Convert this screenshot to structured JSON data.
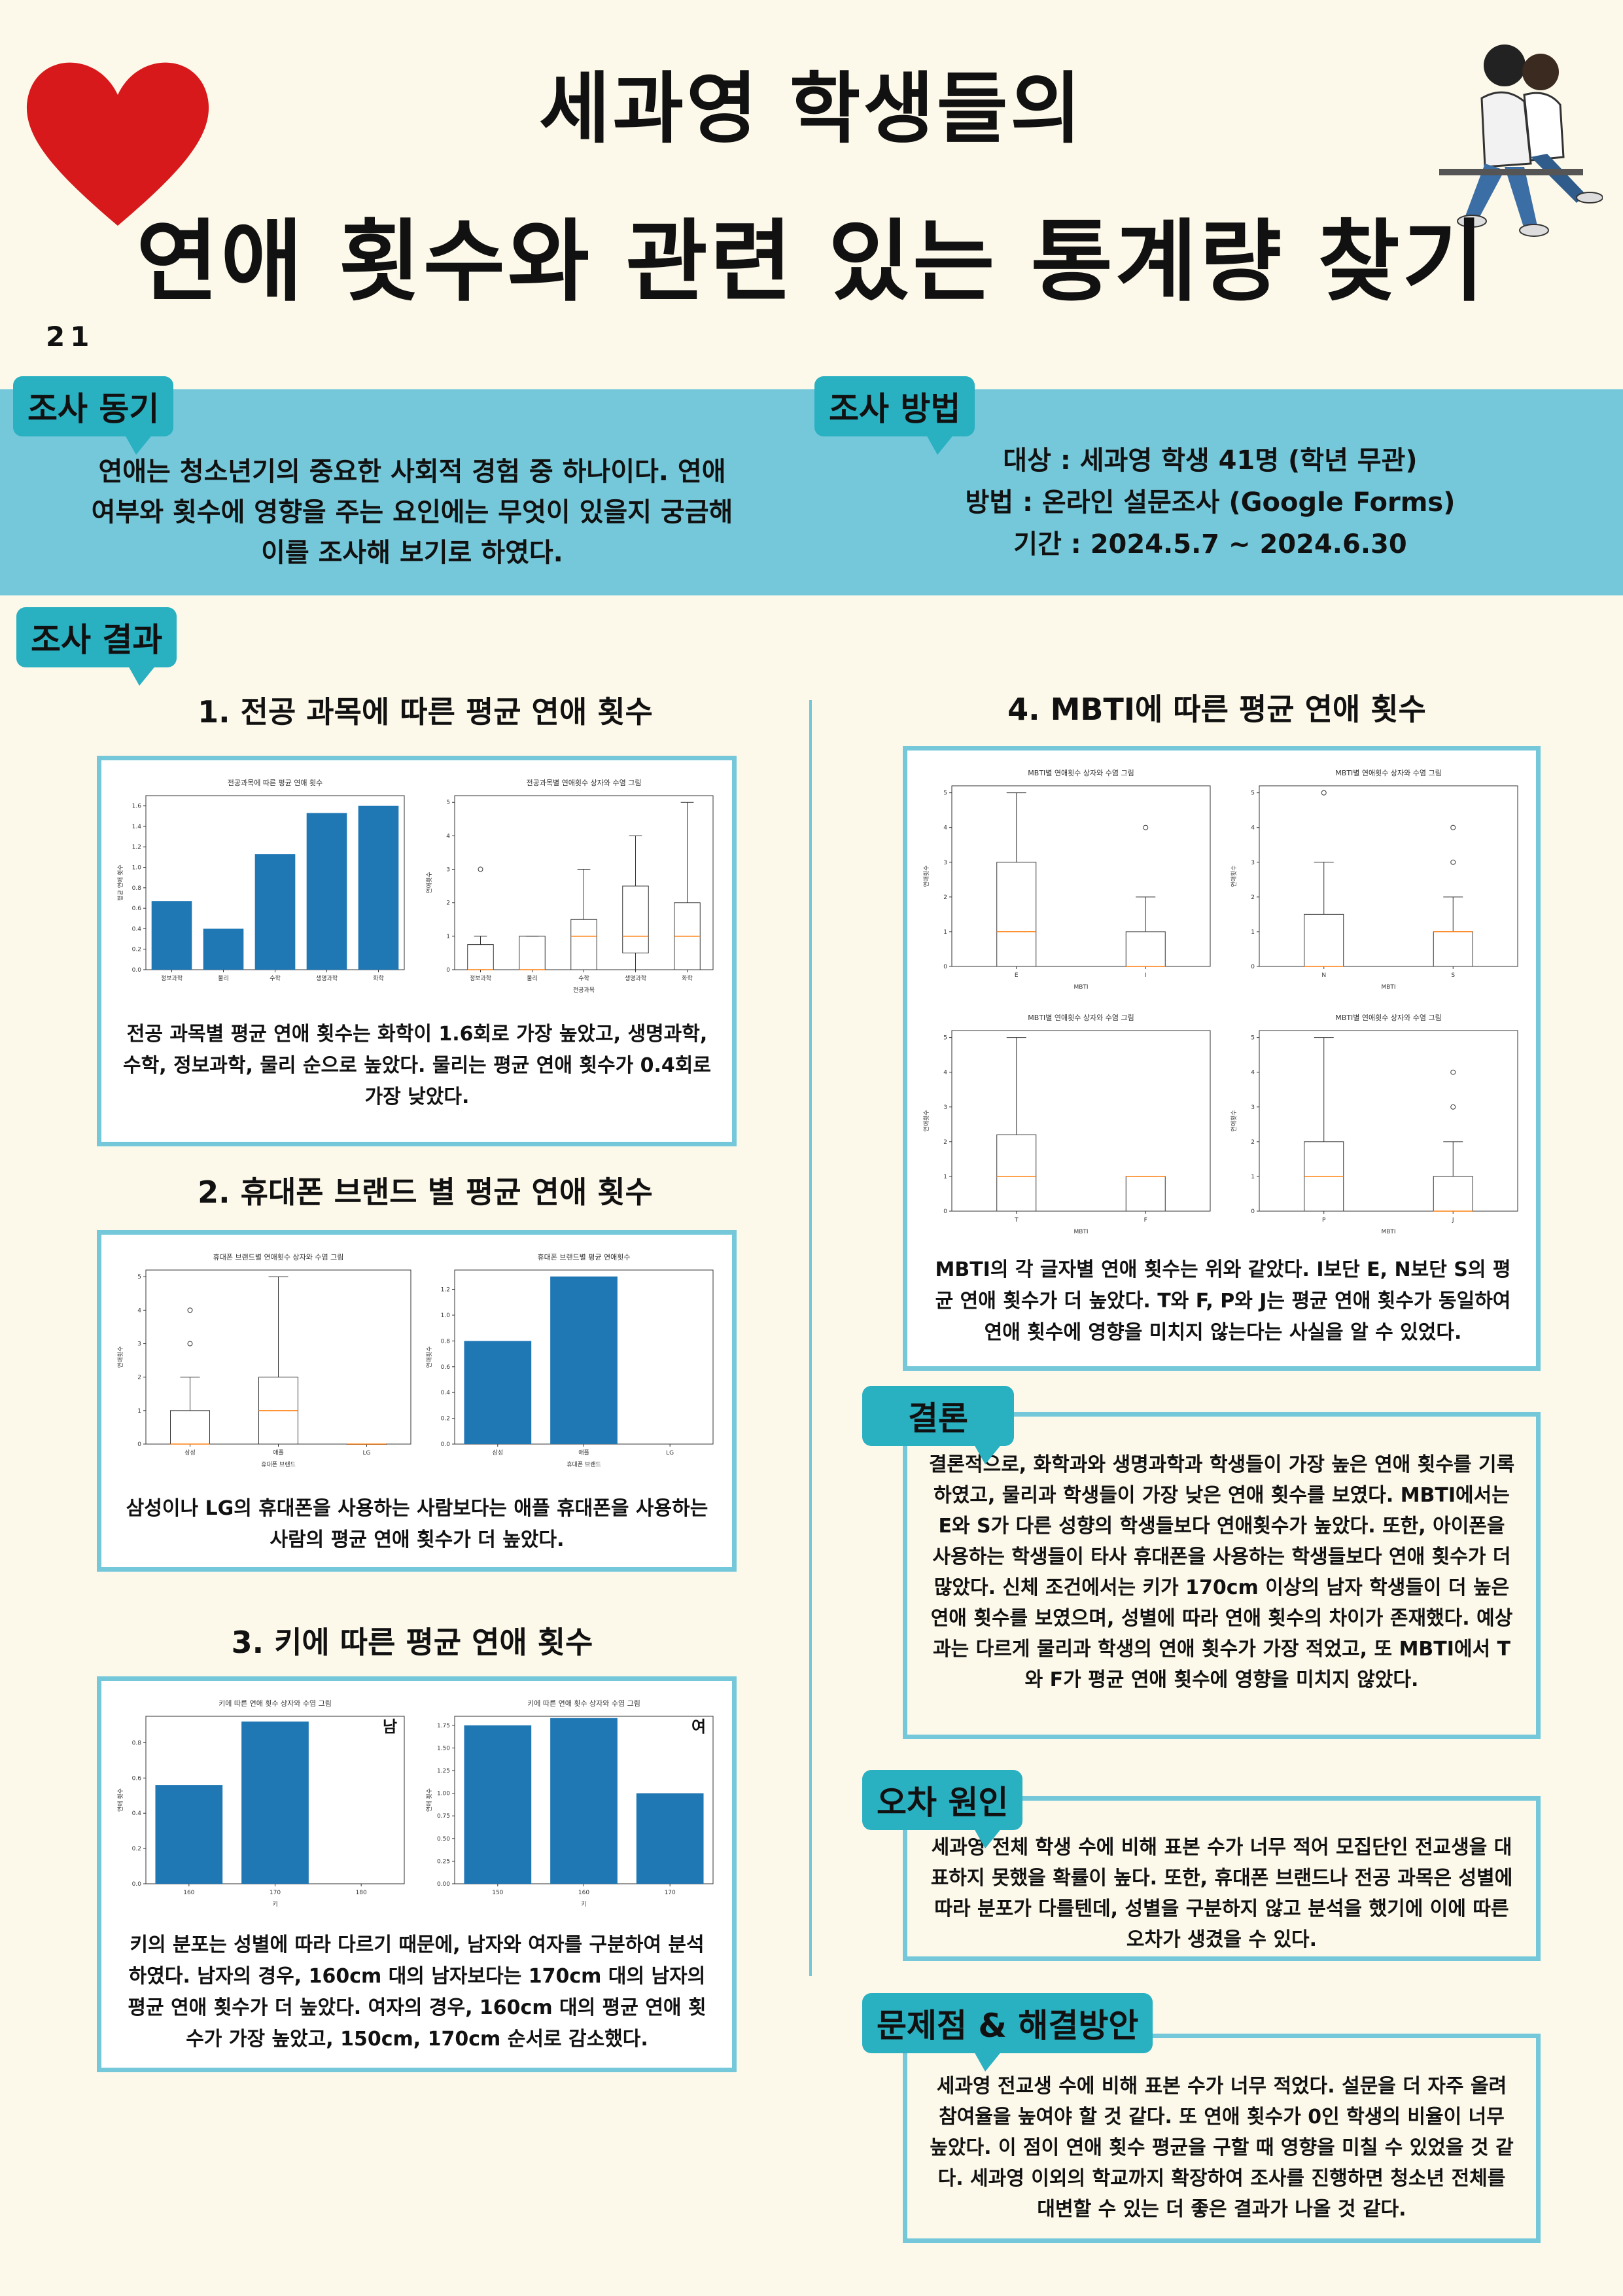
{
  "header": {
    "title_line1": "세과영 학생들의",
    "title_line2": "연애 횟수와 관련 있는 통계량 찾기",
    "page_number": "21"
  },
  "motivation": {
    "tag": "조사 동기",
    "text": "연애는 청소년기의 중요한 사회적 경험 중 하나이다. 연애 여부와 횟수에 영향을 주는 요인에는 무엇이 있을지 궁금해 이를 조사해 보기로 하였다."
  },
  "method": {
    "tag": "조사 방법",
    "target": "대상 : 세과영 학생 41명 (학년 무관)",
    "way": "방법 : 온라인 설문조사 (Google Forms)",
    "period": "기간 : 2024.5.7 ~ 2024.6.30"
  },
  "results": {
    "tag": "조사 결과",
    "s1": {
      "title": "1. 전공 과목에 따른 평균 연애 횟수",
      "text": "전공 과목별 평균 연애 횟수는 화학이 1.6회로 가장 높았고, 생명과학, 수학, 정보과학, 물리 순으로 높았다. 물리는 평균 연애 횟수가 0.4회로 가장 낮았다."
    },
    "s2": {
      "title": "2. 휴대폰 브랜드 별 평균 연애 횟수",
      "text": "삼성이나 LG의 휴대폰을 사용하는 사람보다는 애플 휴대폰을 사용하는 사람의 평균 연애 횟수가 더 높았다."
    },
    "s3": {
      "title": "3. 키에 따른 평균 연애 횟수",
      "text": "키의 분포는 성별에 따라 다르기 때문에, 남자와 여자를 구분하여 분석하였다. 남자의 경우, 160cm 대의 남자보다는 170cm 대의 남자의 평균 연애 횟수가 더 높았다. 여자의 경우, 160cm 대의 평균 연애 횟수가 가장 높았고, 150cm, 170cm 순서로 감소했다."
    },
    "s4": {
      "title": "4. MBTI에 따른 평균 연애 횟수",
      "text": "MBTI의 각 글자별 연애 횟수는 위와 같았다. I보단 E, N보단 S의 평균 연애 횟수가 더 높았다. T와 F, P와 J는 평균 연애 횟수가 동일하여 연애 횟수에 영향을 미치지 않는다는 사실을 알 수 있었다."
    }
  },
  "conclusion": {
    "tag": "결론",
    "text": "결론적으로, 화학과와 생명과학과 학생들이 가장 높은 연애 횟수를 기록하였고, 물리과 학생들이 가장 낮은 연애 횟수를 보였다. MBTI에서는 E와 S가 다른 성향의 학생들보다 연애횟수가 높았다. 또한, 아이폰을 사용하는 학생들이 타사 휴대폰을 사용하는 학생들보다 연애 횟수가 더 많았다. 신체 조건에서는 키가 170cm 이상의 남자 학생들이 더 높은 연애 횟수를 보였으며, 성별에 따라 연애 횟수의 차이가 존재했다. 예상과는 다르게 물리과 학생의 연애 횟수가 가장 적었고, 또 MBTI에서 T와 F가 평균 연애 횟수에 영향을 미치지 않았다."
  },
  "error": {
    "tag": "오차 원인",
    "text": "세과영 전체 학생 수에 비해 표본 수가 너무 적어 모집단인 전교생을 대표하지 못했을 확률이 높다. 또한, 휴대폰 브랜드나 전공 과목은 성별에 따라 분포가 다를텐데, 성별을 구분하지 않고 분석을 했기에 이에 따른 오차가 생겼을 수 있다."
  },
  "problem": {
    "tag": "문제점 & 해결방안",
    "text": "세과영 전교생 수에 비해 표본 수가 너무 적었다. 설문을 더 자주 올려 참여율을 높여야 할 것 같다. 또 연애 횟수가 0인 학생의 비율이 너무 높았다. 이 점이 연애 횟수 평균을 구할 때 영향을 미칠 수 있었을 것 같다. 세과영 이외의 학교까지 확장하여 조사를 진행하면 청소년 전체를 대변할 수 있는 더 좋은 결과가 나올 것 같다."
  },
  "colors": {
    "bar": "#1f77b4",
    "median": "#ff7f0e",
    "frame": "#74c8da",
    "tag": "#29b0c1",
    "heart": "#d7191c"
  },
  "chart_data": [
    {
      "type": "bar",
      "id": "major_mean",
      "title": "전공과목에 따른 평균 연애 횟수",
      "categories": [
        "정보과학",
        "물리",
        "수학",
        "생명과학",
        "화학"
      ],
      "values": [
        0.67,
        0.4,
        1.13,
        1.53,
        1.6
      ],
      "ylabel": "평균 연애 횟수",
      "yticks": [
        "0.0",
        "0.2",
        "0.4",
        "0.6",
        "0.8",
        "1.0",
        "1.2",
        "1.4",
        "1.6"
      ],
      "ylim": [
        0,
        1.7
      ]
    },
    {
      "type": "box",
      "id": "major_box",
      "title": "전공과목별 연애횟수 상자와 수염 그림",
      "categories": [
        "정보과학",
        "물리",
        "수학",
        "생명과학",
        "화학"
      ],
      "xlabel": "전공과목",
      "ylabel": "연애횟수",
      "yticks": [
        "0",
        "1",
        "2",
        "3",
        "4",
        "5"
      ],
      "ylim": [
        0,
        5.2
      ],
      "boxes": [
        {
          "wlo": 0,
          "q1": 0,
          "med": 0,
          "q3": 0.75,
          "whi": 1,
          "out": [
            3
          ]
        },
        {
          "wlo": 0,
          "q1": 0,
          "med": 0,
          "q3": 1,
          "whi": 1,
          "out": []
        },
        {
          "wlo": 0,
          "q1": 0,
          "med": 1,
          "q3": 1.5,
          "whi": 3,
          "out": []
        },
        {
          "wlo": 0,
          "q1": 0.5,
          "med": 1,
          "q3": 2.5,
          "whi": 4,
          "out": []
        },
        {
          "wlo": 0,
          "q1": 0,
          "med": 1,
          "q3": 2,
          "whi": 5,
          "out": []
        }
      ]
    },
    {
      "type": "box",
      "id": "phone_box",
      "title": "휴대폰 브랜드별 연애횟수 상자와 수염 그림",
      "categories": [
        "삼성",
        "애플",
        "LG"
      ],
      "xlabel": "휴대폰 브랜드",
      "ylabel": "연애횟수",
      "yticks": [
        "0",
        "1",
        "2",
        "3",
        "4",
        "5"
      ],
      "ylim": [
        0,
        5.2
      ],
      "boxes": [
        {
          "wlo": 0,
          "q1": 0,
          "med": 0,
          "q3": 1,
          "whi": 2,
          "out": [
            3,
            4
          ]
        },
        {
          "wlo": 0,
          "q1": 0,
          "med": 1,
          "q3": 2,
          "whi": 5,
          "out": []
        },
        {
          "wlo": 0,
          "q1": 0,
          "med": 0,
          "q3": 0,
          "whi": 0,
          "out": []
        }
      ]
    },
    {
      "type": "bar",
      "id": "phone_mean",
      "title": "휴대폰 브랜드별 평균 연애횟수",
      "categories": [
        "삼성",
        "애플",
        "LG"
      ],
      "values": [
        0.8,
        1.3,
        0
      ],
      "xlabel": "휴대폰 브랜드",
      "ylabel": "연애횟수",
      "yticks": [
        "0.0",
        "0.2",
        "0.4",
        "0.6",
        "0.8",
        "1.0",
        "1.2"
      ],
      "ylim": [
        0,
        1.35
      ]
    },
    {
      "type": "bar",
      "id": "height_m",
      "title": "키에 따른 연애 횟수 상자와 수염 그림",
      "label": "남",
      "categories": [
        "160",
        "170",
        "180"
      ],
      "values": [
        0.56,
        0.92,
        0
      ],
      "xlabel": "키",
      "ylabel": "연애 횟수",
      "yticks": [
        "0.0",
        "0.2",
        "0.4",
        "0.6",
        "0.8"
      ],
      "ylim": [
        0,
        0.95
      ]
    },
    {
      "type": "bar",
      "id": "height_f",
      "title": "키에 따른 연애 횟수 상자와 수염 그림",
      "label": "여",
      "categories": [
        "150",
        "160",
        "170"
      ],
      "values": [
        1.75,
        1.83,
        1.0
      ],
      "xlabel": "키",
      "ylabel": "연애 횟수",
      "yticks": [
        "0.00",
        "0.25",
        "0.50",
        "0.75",
        "1.00",
        "1.25",
        "1.50",
        "1.75"
      ],
      "ylim": [
        0,
        1.85
      ]
    },
    {
      "type": "box",
      "id": "mbti_ei",
      "title": "MBTI별 연애횟수 상자와 수염 그림",
      "categories": [
        "E",
        "I"
      ],
      "xlabel": "MBTI",
      "ylabel": "연애횟수",
      "yticks": [
        "0",
        "1",
        "2",
        "3",
        "4",
        "5"
      ],
      "ylim": [
        0,
        5.2
      ],
      "boxes": [
        {
          "wlo": 0,
          "q1": 0,
          "med": 1,
          "q3": 3,
          "whi": 5,
          "out": []
        },
        {
          "wlo": 0,
          "q1": 0,
          "med": 0,
          "q3": 1,
          "whi": 2,
          "out": [
            4
          ]
        }
      ]
    },
    {
      "type": "box",
      "id": "mbti_ns",
      "title": "MBTI별 연애횟수 상자와 수염 그림",
      "categories": [
        "N",
        "S"
      ],
      "xlabel": "MBTI",
      "ylabel": "연애횟수",
      "yticks": [
        "0",
        "1",
        "2",
        "3",
        "4",
        "5"
      ],
      "ylim": [
        0,
        5.2
      ],
      "boxes": [
        {
          "wlo": 0,
          "q1": 0,
          "med": 0,
          "q3": 1.5,
          "whi": 3,
          "out": [
            5
          ]
        },
        {
          "wlo": 0,
          "q1": 0,
          "med": 1,
          "q3": 1,
          "whi": 2,
          "out": [
            3,
            4
          ]
        }
      ]
    },
    {
      "type": "box",
      "id": "mbti_tf",
      "title": "MBTI별 연애횟수 상자와 수염 그림",
      "categories": [
        "T",
        "F"
      ],
      "xlabel": "MBTI",
      "ylabel": "연애횟수",
      "yticks": [
        "0",
        "1",
        "2",
        "3",
        "4",
        "5"
      ],
      "ylim": [
        0,
        5.2
      ],
      "boxes": [
        {
          "wlo": 0,
          "q1": 0,
          "med": 1,
          "q3": 2.2,
          "whi": 5,
          "out": []
        },
        {
          "wlo": 0,
          "q1": 0,
          "med": 1,
          "q3": 1,
          "whi": 1,
          "out": []
        }
      ]
    },
    {
      "type": "box",
      "id": "mbti_pj",
      "title": "MBTI별 연애횟수 상자와 수염 그림",
      "categories": [
        "P",
        "J"
      ],
      "xlabel": "MBTI",
      "ylabel": "연애횟수",
      "yticks": [
        "0",
        "1",
        "2",
        "3",
        "4",
        "5"
      ],
      "ylim": [
        0,
        5.2
      ],
      "boxes": [
        {
          "wlo": 0,
          "q1": 0,
          "med": 1,
          "q3": 2,
          "whi": 5,
          "out": []
        },
        {
          "wlo": 0,
          "q1": 0,
          "med": 0,
          "q3": 1,
          "whi": 2,
          "out": [
            3,
            4
          ]
        }
      ]
    }
  ]
}
